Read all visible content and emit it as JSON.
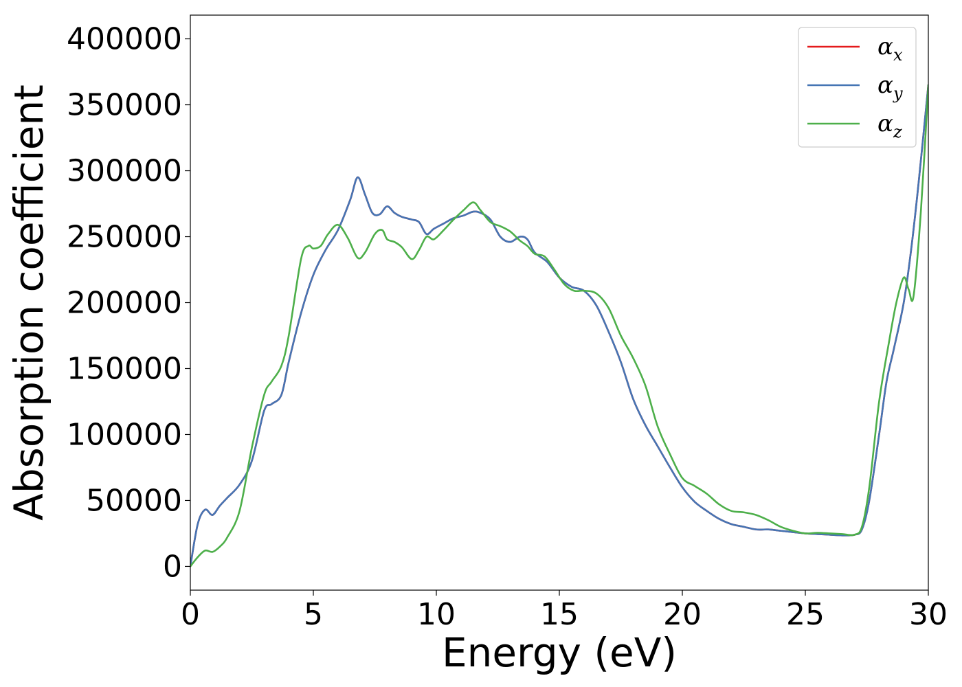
{
  "chart_data": {
    "type": "line",
    "title": "",
    "xlabel": "Energy (eV)",
    "ylabel": "Absorption coefficient",
    "xlim": [
      0,
      30
    ],
    "ylim": [
      -18000,
      418000
    ],
    "xticks": [
      0,
      5,
      10,
      15,
      20,
      25,
      30
    ],
    "yticks": [
      0,
      50000,
      100000,
      150000,
      200000,
      250000,
      300000,
      350000,
      400000
    ],
    "grid": false,
    "legend_position": "top-right",
    "series": [
      {
        "name": "α",
        "subscript": "x",
        "color": "#e41a1c",
        "x": [
          0,
          0.3,
          0.6,
          0.9,
          1.2,
          1.5,
          2.0,
          2.5,
          3.0,
          3.3,
          3.7,
          4.0,
          4.5,
          5.0,
          5.5,
          6.0,
          6.5,
          6.8,
          7.1,
          7.4,
          7.7,
          8.0,
          8.3,
          8.6,
          9.0,
          9.3,
          9.6,
          9.9,
          10.3,
          10.7,
          11.1,
          11.5,
          11.8,
          12.2,
          12.6,
          13.0,
          13.4,
          13.7,
          14.0,
          14.5,
          15.0,
          15.5,
          16.0,
          16.5,
          17.0,
          17.5,
          18.0,
          18.5,
          19.0,
          19.5,
          20.0,
          20.5,
          21.0,
          21.5,
          22.0,
          22.5,
          23.0,
          23.5,
          24.0,
          24.5,
          25.0,
          25.5,
          26.0,
          26.5,
          27.0,
          27.3,
          27.6,
          28.0,
          28.3,
          28.6,
          29.0,
          29.3,
          29.6,
          30.0
        ],
        "y": [
          0,
          32000,
          43000,
          39000,
          46000,
          52000,
          62000,
          80000,
          118000,
          123000,
          130000,
          155000,
          192000,
          221000,
          240000,
          255000,
          278000,
          295000,
          282000,
          268000,
          267000,
          273000,
          268000,
          265000,
          263000,
          261000,
          252000,
          256000,
          260000,
          264000,
          266000,
          269000,
          268000,
          263000,
          250000,
          246000,
          250000,
          248000,
          238000,
          231000,
          219000,
          212000,
          209000,
          198000,
          178000,
          155000,
          127000,
          107000,
          91000,
          75000,
          60000,
          49000,
          42000,
          36000,
          32000,
          30000,
          28000,
          28000,
          27000,
          26000,
          25000,
          24500,
          24000,
          23500,
          24000,
          28000,
          50000,
          100000,
          140000,
          165000,
          200000,
          240000,
          290000,
          365000
        ]
      },
      {
        "name": "α",
        "subscript": "y",
        "color": "#4575b4",
        "x": [
          0,
          0.3,
          0.6,
          0.9,
          1.2,
          1.5,
          2.0,
          2.5,
          3.0,
          3.3,
          3.7,
          4.0,
          4.5,
          5.0,
          5.5,
          6.0,
          6.5,
          6.8,
          7.1,
          7.4,
          7.7,
          8.0,
          8.3,
          8.6,
          9.0,
          9.3,
          9.6,
          9.9,
          10.3,
          10.7,
          11.1,
          11.5,
          11.8,
          12.2,
          12.6,
          13.0,
          13.4,
          13.7,
          14.0,
          14.5,
          15.0,
          15.5,
          16.0,
          16.5,
          17.0,
          17.5,
          18.0,
          18.5,
          19.0,
          19.5,
          20.0,
          20.5,
          21.0,
          21.5,
          22.0,
          22.5,
          23.0,
          23.5,
          24.0,
          24.5,
          25.0,
          25.5,
          26.0,
          26.5,
          27.0,
          27.3,
          27.6,
          28.0,
          28.3,
          28.6,
          29.0,
          29.3,
          29.6,
          30.0
        ],
        "y": [
          0,
          32000,
          43000,
          39000,
          46000,
          52000,
          62000,
          80000,
          118000,
          123000,
          130000,
          155000,
          192000,
          221000,
          240000,
          255000,
          278000,
          295000,
          282000,
          268000,
          267000,
          273000,
          268000,
          265000,
          263000,
          261000,
          252000,
          256000,
          260000,
          264000,
          266000,
          269000,
          268000,
          263000,
          250000,
          246000,
          250000,
          248000,
          238000,
          231000,
          219000,
          212000,
          209000,
          198000,
          178000,
          155000,
          127000,
          107000,
          91000,
          75000,
          60000,
          49000,
          42000,
          36000,
          32000,
          30000,
          28000,
          28000,
          27000,
          26000,
          25000,
          24500,
          24000,
          23500,
          24000,
          28000,
          50000,
          100000,
          140000,
          165000,
          200000,
          240000,
          290000,
          365000
        ]
      },
      {
        "name": "α",
        "subscript": "z",
        "color": "#4daf4a",
        "x": [
          0,
          0.3,
          0.6,
          0.9,
          1.2,
          1.5,
          2.0,
          2.5,
          3.0,
          3.3,
          3.7,
          4.0,
          4.5,
          4.8,
          5.0,
          5.3,
          5.6,
          6.0,
          6.4,
          6.8,
          7.1,
          7.5,
          7.8,
          8.0,
          8.3,
          8.6,
          9.0,
          9.3,
          9.6,
          9.9,
          10.3,
          10.7,
          11.1,
          11.5,
          11.8,
          12.2,
          12.6,
          13.0,
          13.4,
          13.7,
          14.0,
          14.4,
          14.8,
          15.2,
          15.6,
          16.0,
          16.5,
          17.0,
          17.5,
          18.0,
          18.5,
          19.0,
          19.5,
          20.0,
          20.5,
          21.0,
          21.5,
          22.0,
          22.5,
          23.0,
          23.5,
          24.0,
          24.5,
          25.0,
          25.5,
          26.0,
          26.5,
          27.0,
          27.3,
          27.6,
          28.0,
          28.4,
          28.7,
          29.0,
          29.2,
          29.4,
          29.7,
          30.0
        ],
        "y": [
          0,
          7000,
          12000,
          11000,
          15000,
          22000,
          42000,
          90000,
          130000,
          140000,
          152000,
          175000,
          233000,
          243000,
          241000,
          243000,
          252000,
          259000,
          249000,
          234000,
          238000,
          252000,
          255000,
          248000,
          246000,
          242000,
          233000,
          240000,
          250000,
          248000,
          255000,
          263000,
          270000,
          276000,
          270000,
          261000,
          258000,
          254000,
          247000,
          243000,
          237000,
          235000,
          225000,
          214000,
          209000,
          209000,
          207000,
          196000,
          175000,
          158000,
          137000,
          106000,
          85000,
          67000,
          61000,
          55000,
          47000,
          42000,
          41000,
          39000,
          35000,
          30000,
          27000,
          25000,
          25500,
          25000,
          24500,
          24000,
          30000,
          60000,
          125000,
          170000,
          200000,
          219000,
          210000,
          205000,
          270000,
          365000
        ]
      }
    ]
  }
}
